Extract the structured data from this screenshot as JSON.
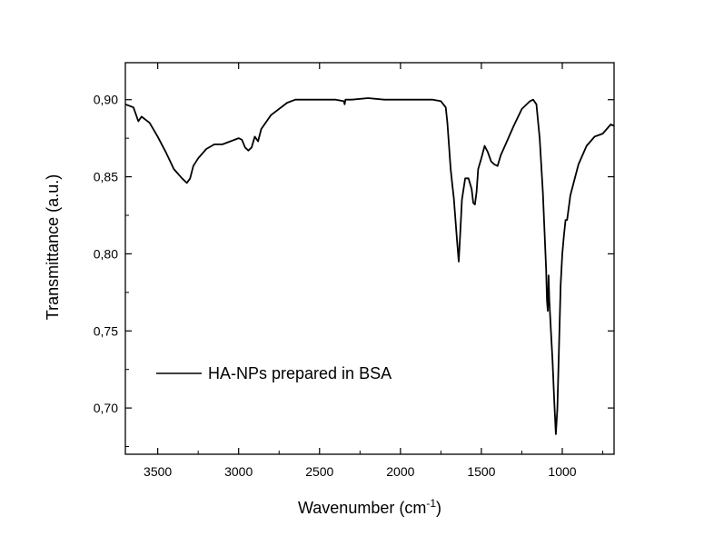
{
  "chart_data": {
    "type": "line",
    "title": "",
    "xlabel": "Wavenumber (cm",
    "xlabel_sup": "-1",
    "xlabel_suffix": ")",
    "ylabel": "Transmittance (a.u.)",
    "xlim": [
      3700,
      680
    ],
    "ylim": [
      0.67,
      0.924
    ],
    "x_reversed": true,
    "grid": false,
    "legend_position": "bottom-left",
    "x_ticks": [
      3500,
      3000,
      2500,
      2000,
      1500,
      1000
    ],
    "x_tick_labels": [
      "3500",
      "3000",
      "2500",
      "2000",
      "1500",
      "1000"
    ],
    "y_ticks": [
      0.7,
      0.75,
      0.8,
      0.85,
      0.9
    ],
    "y_tick_labels": [
      "0,70",
      "0,75",
      "0,80",
      "0,85",
      "0,90"
    ],
    "series": [
      {
        "name": "HA-NPs prepared in BSA",
        "color": "#000000",
        "x": [
          3700,
          3650,
          3620,
          3600,
          3550,
          3500,
          3450,
          3400,
          3350,
          3320,
          3300,
          3280,
          3250,
          3200,
          3150,
          3100,
          3050,
          3000,
          2980,
          2960,
          2940,
          2920,
          2900,
          2880,
          2860,
          2800,
          2700,
          2650,
          2600,
          2500,
          2400,
          2350,
          2345,
          2340,
          2300,
          2200,
          2100,
          2000,
          1900,
          1800,
          1750,
          1720,
          1710,
          1700,
          1690,
          1680,
          1670,
          1660,
          1650,
          1640,
          1630,
          1620,
          1600,
          1580,
          1560,
          1550,
          1540,
          1530,
          1520,
          1500,
          1480,
          1460,
          1440,
          1420,
          1400,
          1380,
          1350,
          1300,
          1250,
          1200,
          1180,
          1160,
          1140,
          1120,
          1100,
          1095,
          1090,
          1085,
          1080,
          1075,
          1070,
          1060,
          1050,
          1040,
          1030,
          1020,
          1010,
          1000,
          990,
          980,
          970,
          960,
          950,
          900,
          850,
          800,
          750,
          700,
          680
        ],
        "y": [
          0.897,
          0.895,
          0.886,
          0.889,
          0.885,
          0.876,
          0.866,
          0.855,
          0.849,
          0.846,
          0.849,
          0.857,
          0.862,
          0.868,
          0.871,
          0.871,
          0.873,
          0.875,
          0.874,
          0.869,
          0.867,
          0.869,
          0.876,
          0.873,
          0.881,
          0.89,
          0.898,
          0.9,
          0.9,
          0.9,
          0.9,
          0.899,
          0.897,
          0.9,
          0.9,
          0.901,
          0.9,
          0.9,
          0.9,
          0.9,
          0.899,
          0.895,
          0.885,
          0.87,
          0.855,
          0.845,
          0.836,
          0.822,
          0.808,
          0.795,
          0.815,
          0.835,
          0.849,
          0.849,
          0.842,
          0.833,
          0.832,
          0.84,
          0.855,
          0.862,
          0.87,
          0.866,
          0.86,
          0.858,
          0.857,
          0.864,
          0.871,
          0.883,
          0.894,
          0.899,
          0.9,
          0.897,
          0.875,
          0.84,
          0.79,
          0.77,
          0.763,
          0.786,
          0.77,
          0.76,
          0.75,
          0.73,
          0.705,
          0.683,
          0.7,
          0.74,
          0.78,
          0.8,
          0.812,
          0.822,
          0.822,
          0.83,
          0.838,
          0.858,
          0.87,
          0.876,
          0.878,
          0.884,
          0.883
        ]
      }
    ]
  }
}
